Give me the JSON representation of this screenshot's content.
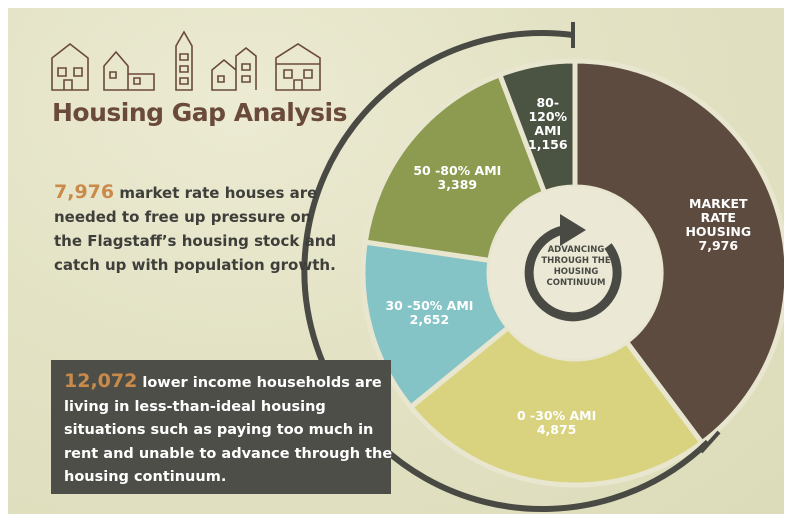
{
  "chart_data": {
    "type": "donut",
    "title": "Housing Gap Analysis",
    "categories": [
      "MARKET RATE HOUSING",
      "0 -30% AMI",
      "30 -50% AMI",
      "50 -80% AMI",
      "80-120% AMI"
    ],
    "values": [
      7976,
      4875,
      2652,
      3389,
      1156
    ],
    "value_labels": [
      "7,976",
      "4,875",
      "2,652",
      "3,389",
      "1,156"
    ],
    "colors": [
      "#5e4b3f",
      "#d9d27e",
      "#84c3c6",
      "#8c9b50",
      "#4b5342"
    ],
    "center_label": "ADVANCING THROUGH THE HOUSING CONTINUUM",
    "annotations": [
      {
        "highlight": "7,976",
        "text": " market rate houses are needed to free up pressure on the Flagstaff’s housing stock and catch up with population growth."
      },
      {
        "highlight": "12,072",
        "text": " lower income households are living in less-than-ideal housing situations such as paying too much in rent and unable to advance through the housing continuum."
      }
    ]
  }
}
